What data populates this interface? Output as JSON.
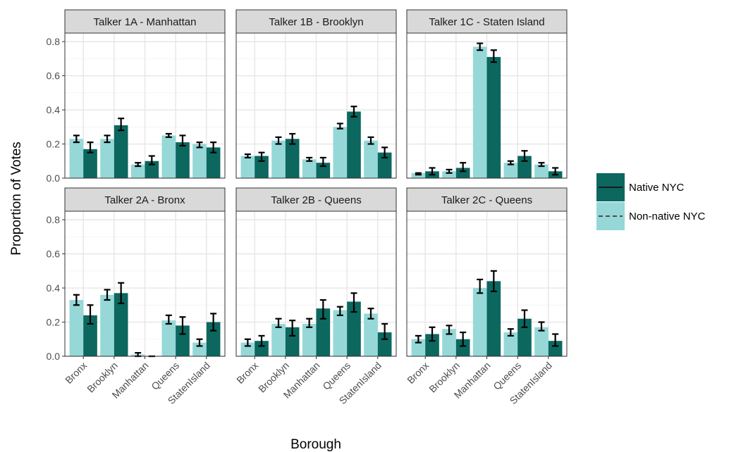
{
  "chart_data": {
    "type": "bar",
    "xlabel": "Borough",
    "ylabel": "Proportion of Votes",
    "ylim": [
      0,
      0.85
    ],
    "yticks": [
      "0.0",
      "0.2",
      "0.4",
      "0.6",
      "0.8"
    ],
    "categories": [
      "Bronx",
      "Brooklyn",
      "Manhattan",
      "Queens",
      "StatenIsland"
    ],
    "grid": true,
    "legend_position": "right",
    "legend": [
      {
        "name": "Native NYC",
        "color": "#0c675f",
        "line": "solid"
      },
      {
        "name": "Non-native NYC",
        "color": "#96d8d8",
        "line": "dashed"
      }
    ],
    "panels": [
      {
        "title": "Talker  1A  -  Manhattan",
        "native": {
          "values": [
            0.17,
            0.31,
            0.1,
            0.21,
            0.18
          ],
          "err_low": [
            0.15,
            0.28,
            0.08,
            0.19,
            0.15
          ],
          "err_high": [
            0.21,
            0.35,
            0.13,
            0.25,
            0.21
          ]
        },
        "non_native": {
          "values": [
            0.23,
            0.23,
            0.08,
            0.25,
            0.2
          ],
          "err_low": [
            0.21,
            0.21,
            0.07,
            0.24,
            0.18
          ],
          "err_high": [
            0.25,
            0.25,
            0.09,
            0.26,
            0.21
          ]
        }
      },
      {
        "title": "Talker  1B  -  Brooklyn",
        "native": {
          "values": [
            0.13,
            0.23,
            0.09,
            0.39,
            0.15
          ],
          "err_low": [
            0.1,
            0.2,
            0.07,
            0.36,
            0.12
          ],
          "err_high": [
            0.15,
            0.26,
            0.12,
            0.42,
            0.18
          ]
        },
        "non_native": {
          "values": [
            0.13,
            0.22,
            0.11,
            0.3,
            0.22
          ],
          "err_low": [
            0.12,
            0.2,
            0.1,
            0.29,
            0.2
          ],
          "err_high": [
            0.14,
            0.24,
            0.12,
            0.32,
            0.24
          ]
        }
      },
      {
        "title": "Talker  1C  -  Staten Island",
        "native": {
          "values": [
            0.04,
            0.06,
            0.71,
            0.13,
            0.04
          ],
          "err_low": [
            0.02,
            0.04,
            0.68,
            0.1,
            0.02
          ],
          "err_high": [
            0.06,
            0.09,
            0.75,
            0.16,
            0.06
          ]
        },
        "non_native": {
          "values": [
            0.03,
            0.04,
            0.77,
            0.09,
            0.08
          ],
          "err_low": [
            0.02,
            0.03,
            0.75,
            0.08,
            0.07
          ],
          "err_high": [
            0.03,
            0.05,
            0.79,
            0.1,
            0.09
          ]
        }
      },
      {
        "title": "Talker  2A  -  Bronx",
        "native": {
          "values": [
            0.24,
            0.37,
            0.0,
            0.18,
            0.2
          ],
          "err_low": [
            0.19,
            0.31,
            0.0,
            0.13,
            0.15
          ],
          "err_high": [
            0.3,
            0.43,
            0.0,
            0.23,
            0.25
          ]
        },
        "non_native": {
          "values": [
            0.33,
            0.36,
            0.01,
            0.21,
            0.08
          ],
          "err_low": [
            0.3,
            0.33,
            0.0,
            0.19,
            0.06
          ],
          "err_high": [
            0.36,
            0.39,
            0.02,
            0.24,
            0.1
          ]
        }
      },
      {
        "title": "Talker  2B  -  Queens",
        "native": {
          "values": [
            0.09,
            0.17,
            0.28,
            0.32,
            0.14
          ],
          "err_low": [
            0.06,
            0.12,
            0.22,
            0.26,
            0.1
          ],
          "err_high": [
            0.12,
            0.21,
            0.33,
            0.37,
            0.19
          ]
        },
        "non_native": {
          "values": [
            0.08,
            0.19,
            0.19,
            0.27,
            0.25
          ],
          "err_low": [
            0.06,
            0.17,
            0.17,
            0.24,
            0.22
          ],
          "err_high": [
            0.1,
            0.22,
            0.22,
            0.29,
            0.28
          ]
        }
      },
      {
        "title": "Talker  2C  -  Queens",
        "native": {
          "values": [
            0.13,
            0.1,
            0.44,
            0.22,
            0.09
          ],
          "err_low": [
            0.09,
            0.06,
            0.38,
            0.17,
            0.06
          ],
          "err_high": [
            0.17,
            0.14,
            0.5,
            0.27,
            0.13
          ]
        },
        "non_native": {
          "values": [
            0.1,
            0.16,
            0.4,
            0.14,
            0.17
          ],
          "err_low": [
            0.08,
            0.13,
            0.37,
            0.12,
            0.15
          ],
          "err_high": [
            0.12,
            0.18,
            0.45,
            0.16,
            0.2
          ]
        }
      }
    ]
  }
}
